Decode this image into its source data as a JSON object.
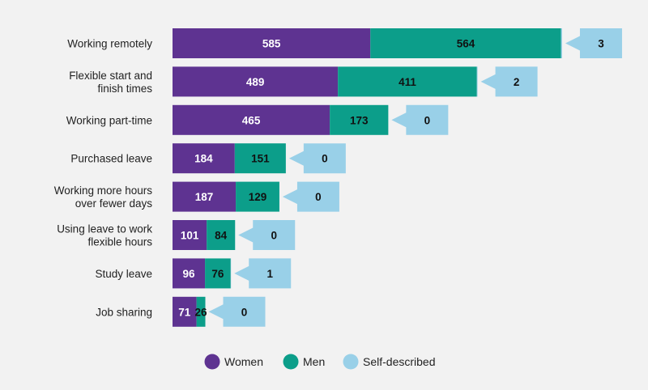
{
  "chart_data": {
    "type": "bar",
    "orientation": "horizontal",
    "stacked": true,
    "categories": [
      [
        "Working remotely"
      ],
      [
        "Flexible start and",
        "finish times"
      ],
      [
        "Working part-time"
      ],
      [
        "Purchased leave"
      ],
      [
        "Working more hours",
        "over fewer days"
      ],
      [
        "Using leave to work",
        "flexible hours"
      ],
      [
        "Study leave"
      ],
      [
        "Job sharing"
      ]
    ],
    "series": [
      {
        "name": "Women",
        "values": [
          585,
          489,
          465,
          184,
          187,
          101,
          96,
          71
        ]
      },
      {
        "name": "Men",
        "values": [
          564,
          411,
          173,
          151,
          129,
          84,
          76,
          26
        ]
      },
      {
        "name": "Self-described",
        "values": [
          3,
          2,
          0,
          0,
          0,
          0,
          1,
          0
        ]
      }
    ],
    "colors": {
      "Women": "#5e3391",
      "Men": "#0c9e8a",
      "Self-described": "#99d0e8",
      "women_label": "#ffffff",
      "men_label": "#111111",
      "self_label": "#111111"
    },
    "title": "",
    "xlabel": "",
    "ylabel": "",
    "legend_position": "bottom-center",
    "grid": false
  }
}
